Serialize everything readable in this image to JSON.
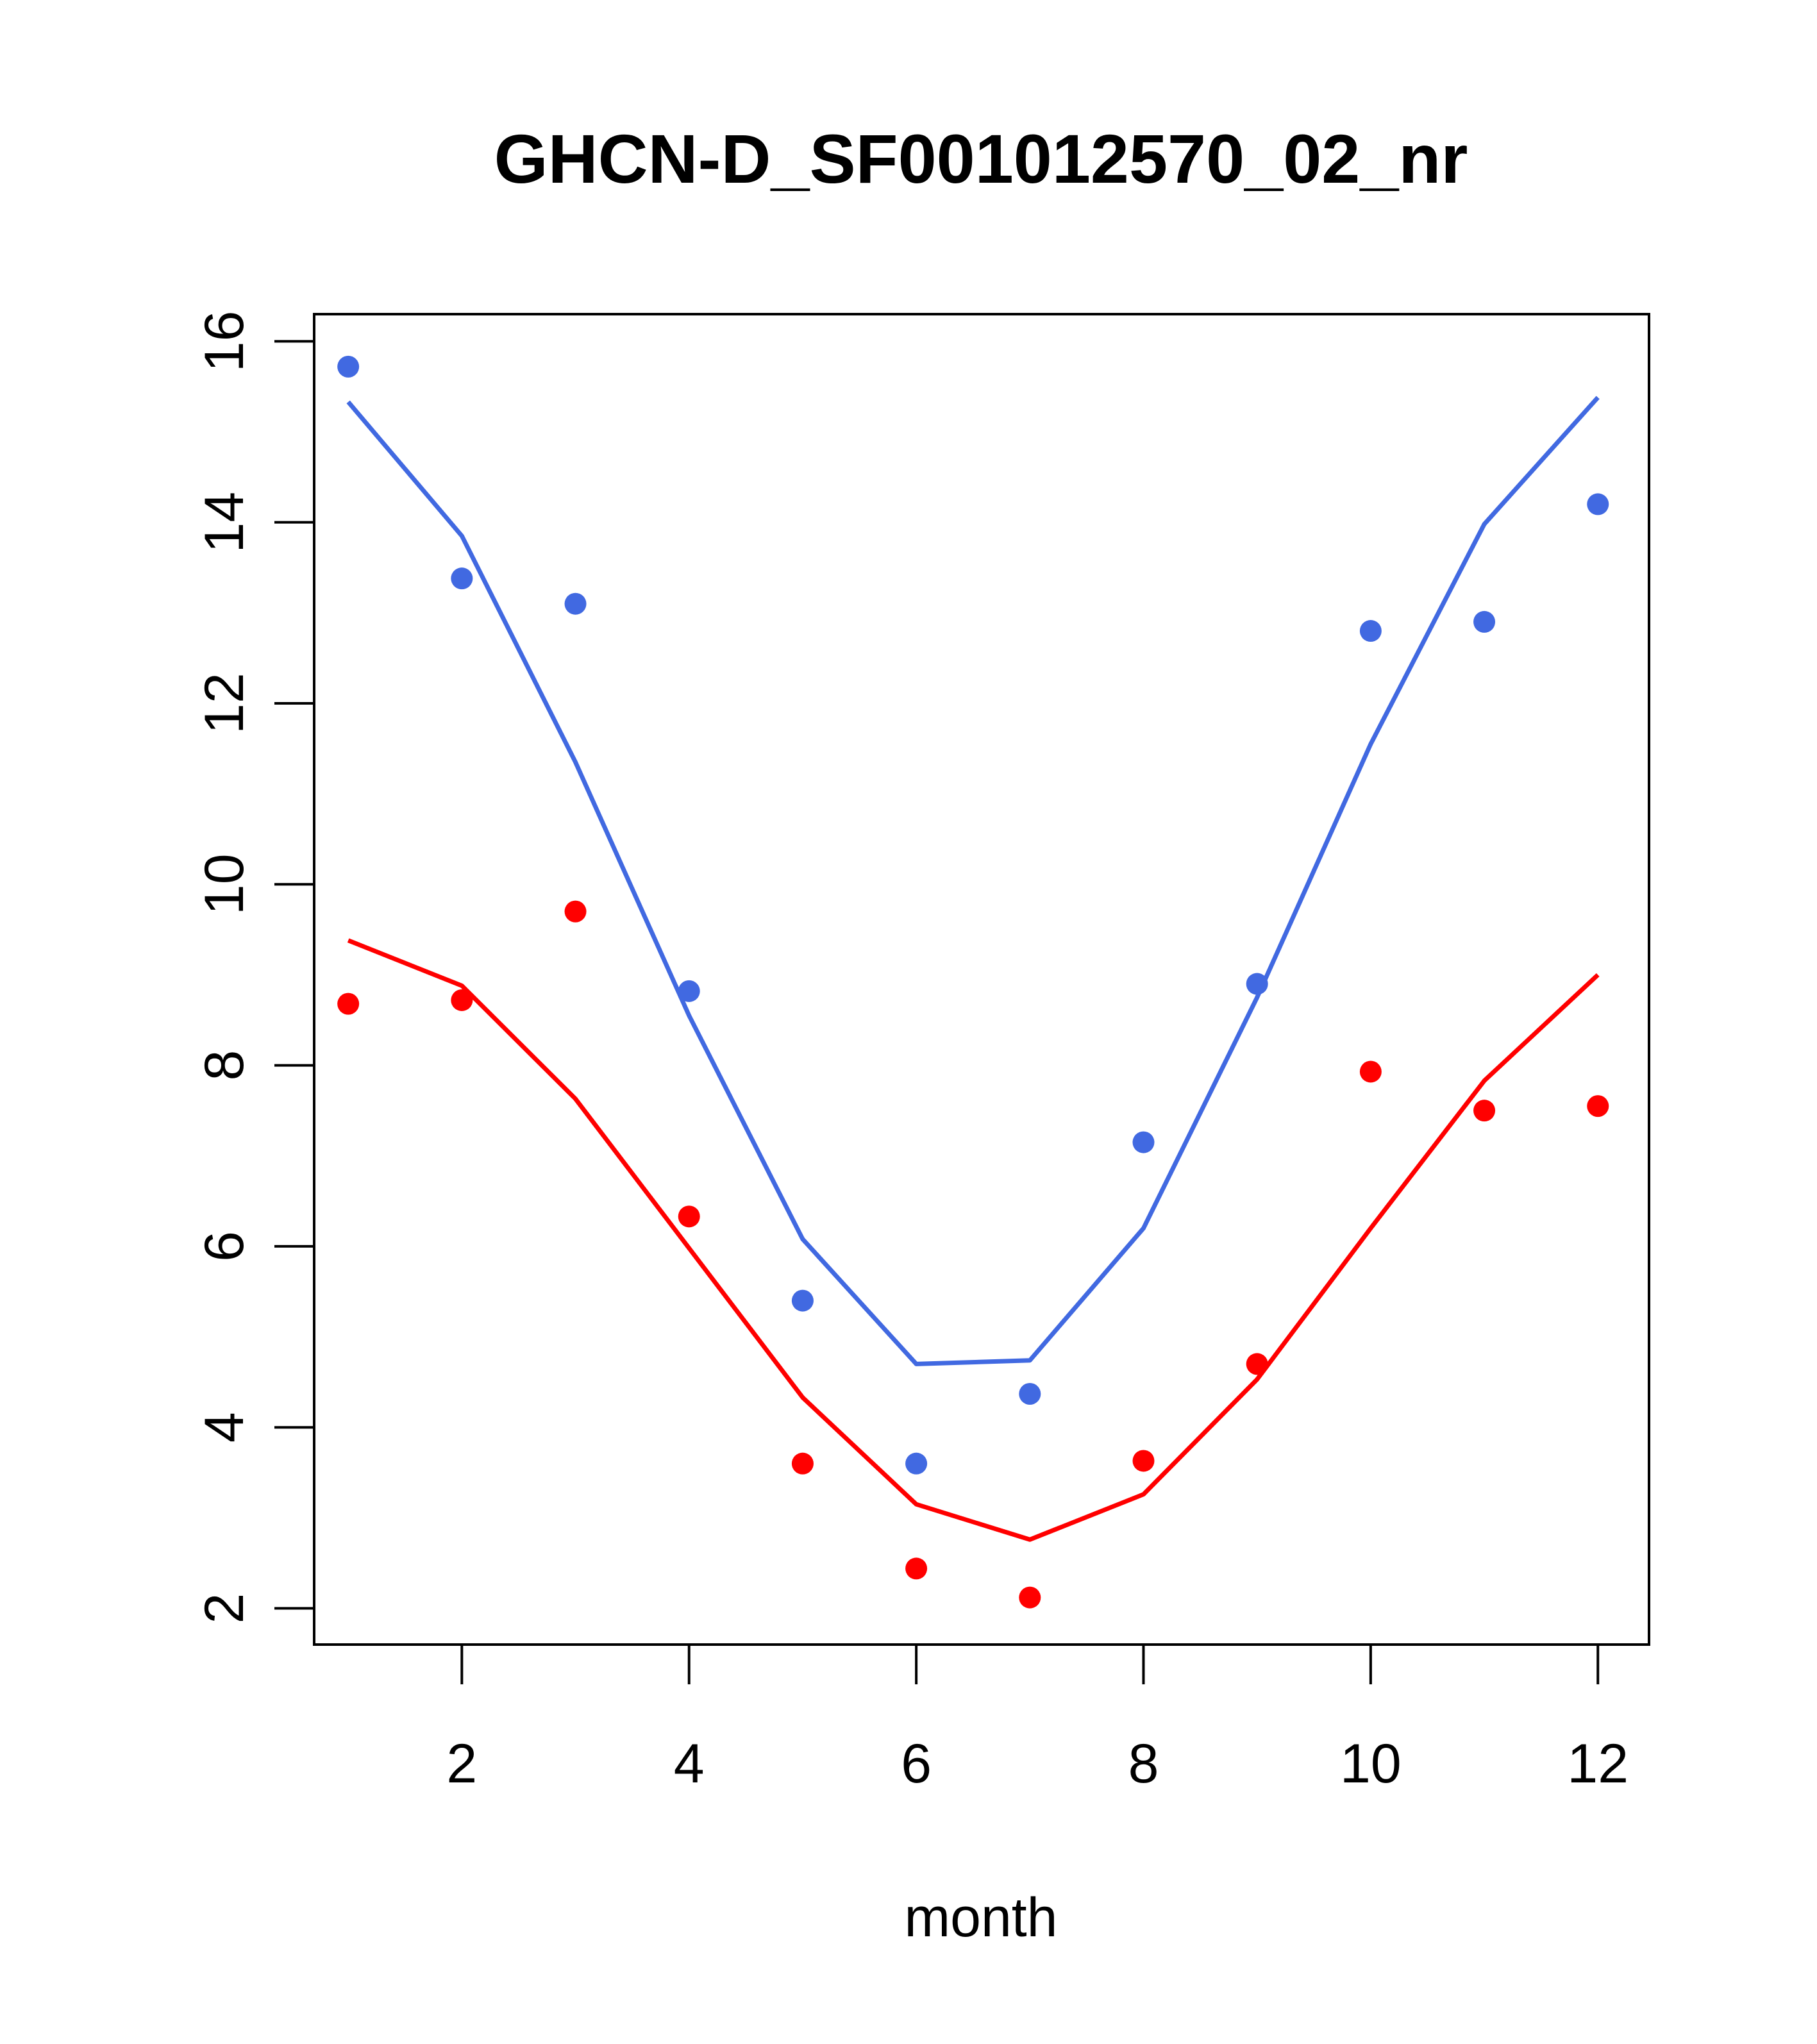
{
  "chart_data": {
    "type": "scatter",
    "title": "GHCN-D_SF001012570_02_nr",
    "xlabel": "month",
    "ylabel": "",
    "xlim": [
      0.7,
      12.45
    ],
    "ylim": [
      1.6,
      16.3
    ],
    "xticks": [
      2,
      4,
      6,
      8,
      10,
      12
    ],
    "yticks": [
      2,
      4,
      6,
      8,
      10,
      12,
      14,
      16
    ],
    "grid": false,
    "legend": "none",
    "series": [
      {
        "color": "#4169E1",
        "points": {
          "x": [
            1,
            2,
            3,
            4,
            5,
            6,
            7,
            8,
            9,
            10,
            11,
            12
          ],
          "y": [
            15.72,
            13.38,
            13.1,
            8.82,
            5.4,
            3.6,
            4.37,
            7.15,
            8.9,
            12.8,
            12.9,
            14.2
          ]
        },
        "line": {
          "x": [
            1,
            2,
            3,
            4,
            5,
            6,
            7,
            8,
            9,
            10,
            11,
            12
          ],
          "y": [
            15.33,
            13.85,
            11.35,
            8.55,
            6.08,
            4.7,
            4.74,
            6.2,
            8.75,
            11.55,
            13.98,
            15.38
          ]
        }
      },
      {
        "color": "#FF0000",
        "points": {
          "x": [
            1,
            2,
            3,
            4,
            5,
            6,
            7,
            8,
            9,
            10,
            11,
            12
          ],
          "y": [
            8.68,
            8.72,
            9.7,
            6.33,
            3.6,
            2.44,
            2.12,
            3.63,
            4.7,
            7.93,
            7.5,
            7.55
          ]
        },
        "line": {
          "x": [
            1,
            2,
            3,
            4,
            5,
            6,
            7,
            8,
            9,
            10,
            11,
            12
          ],
          "y": [
            9.38,
            8.88,
            7.63,
            5.98,
            4.33,
            3.15,
            2.76,
            3.26,
            4.53,
            6.2,
            7.83,
            9.0
          ]
        }
      }
    ]
  }
}
